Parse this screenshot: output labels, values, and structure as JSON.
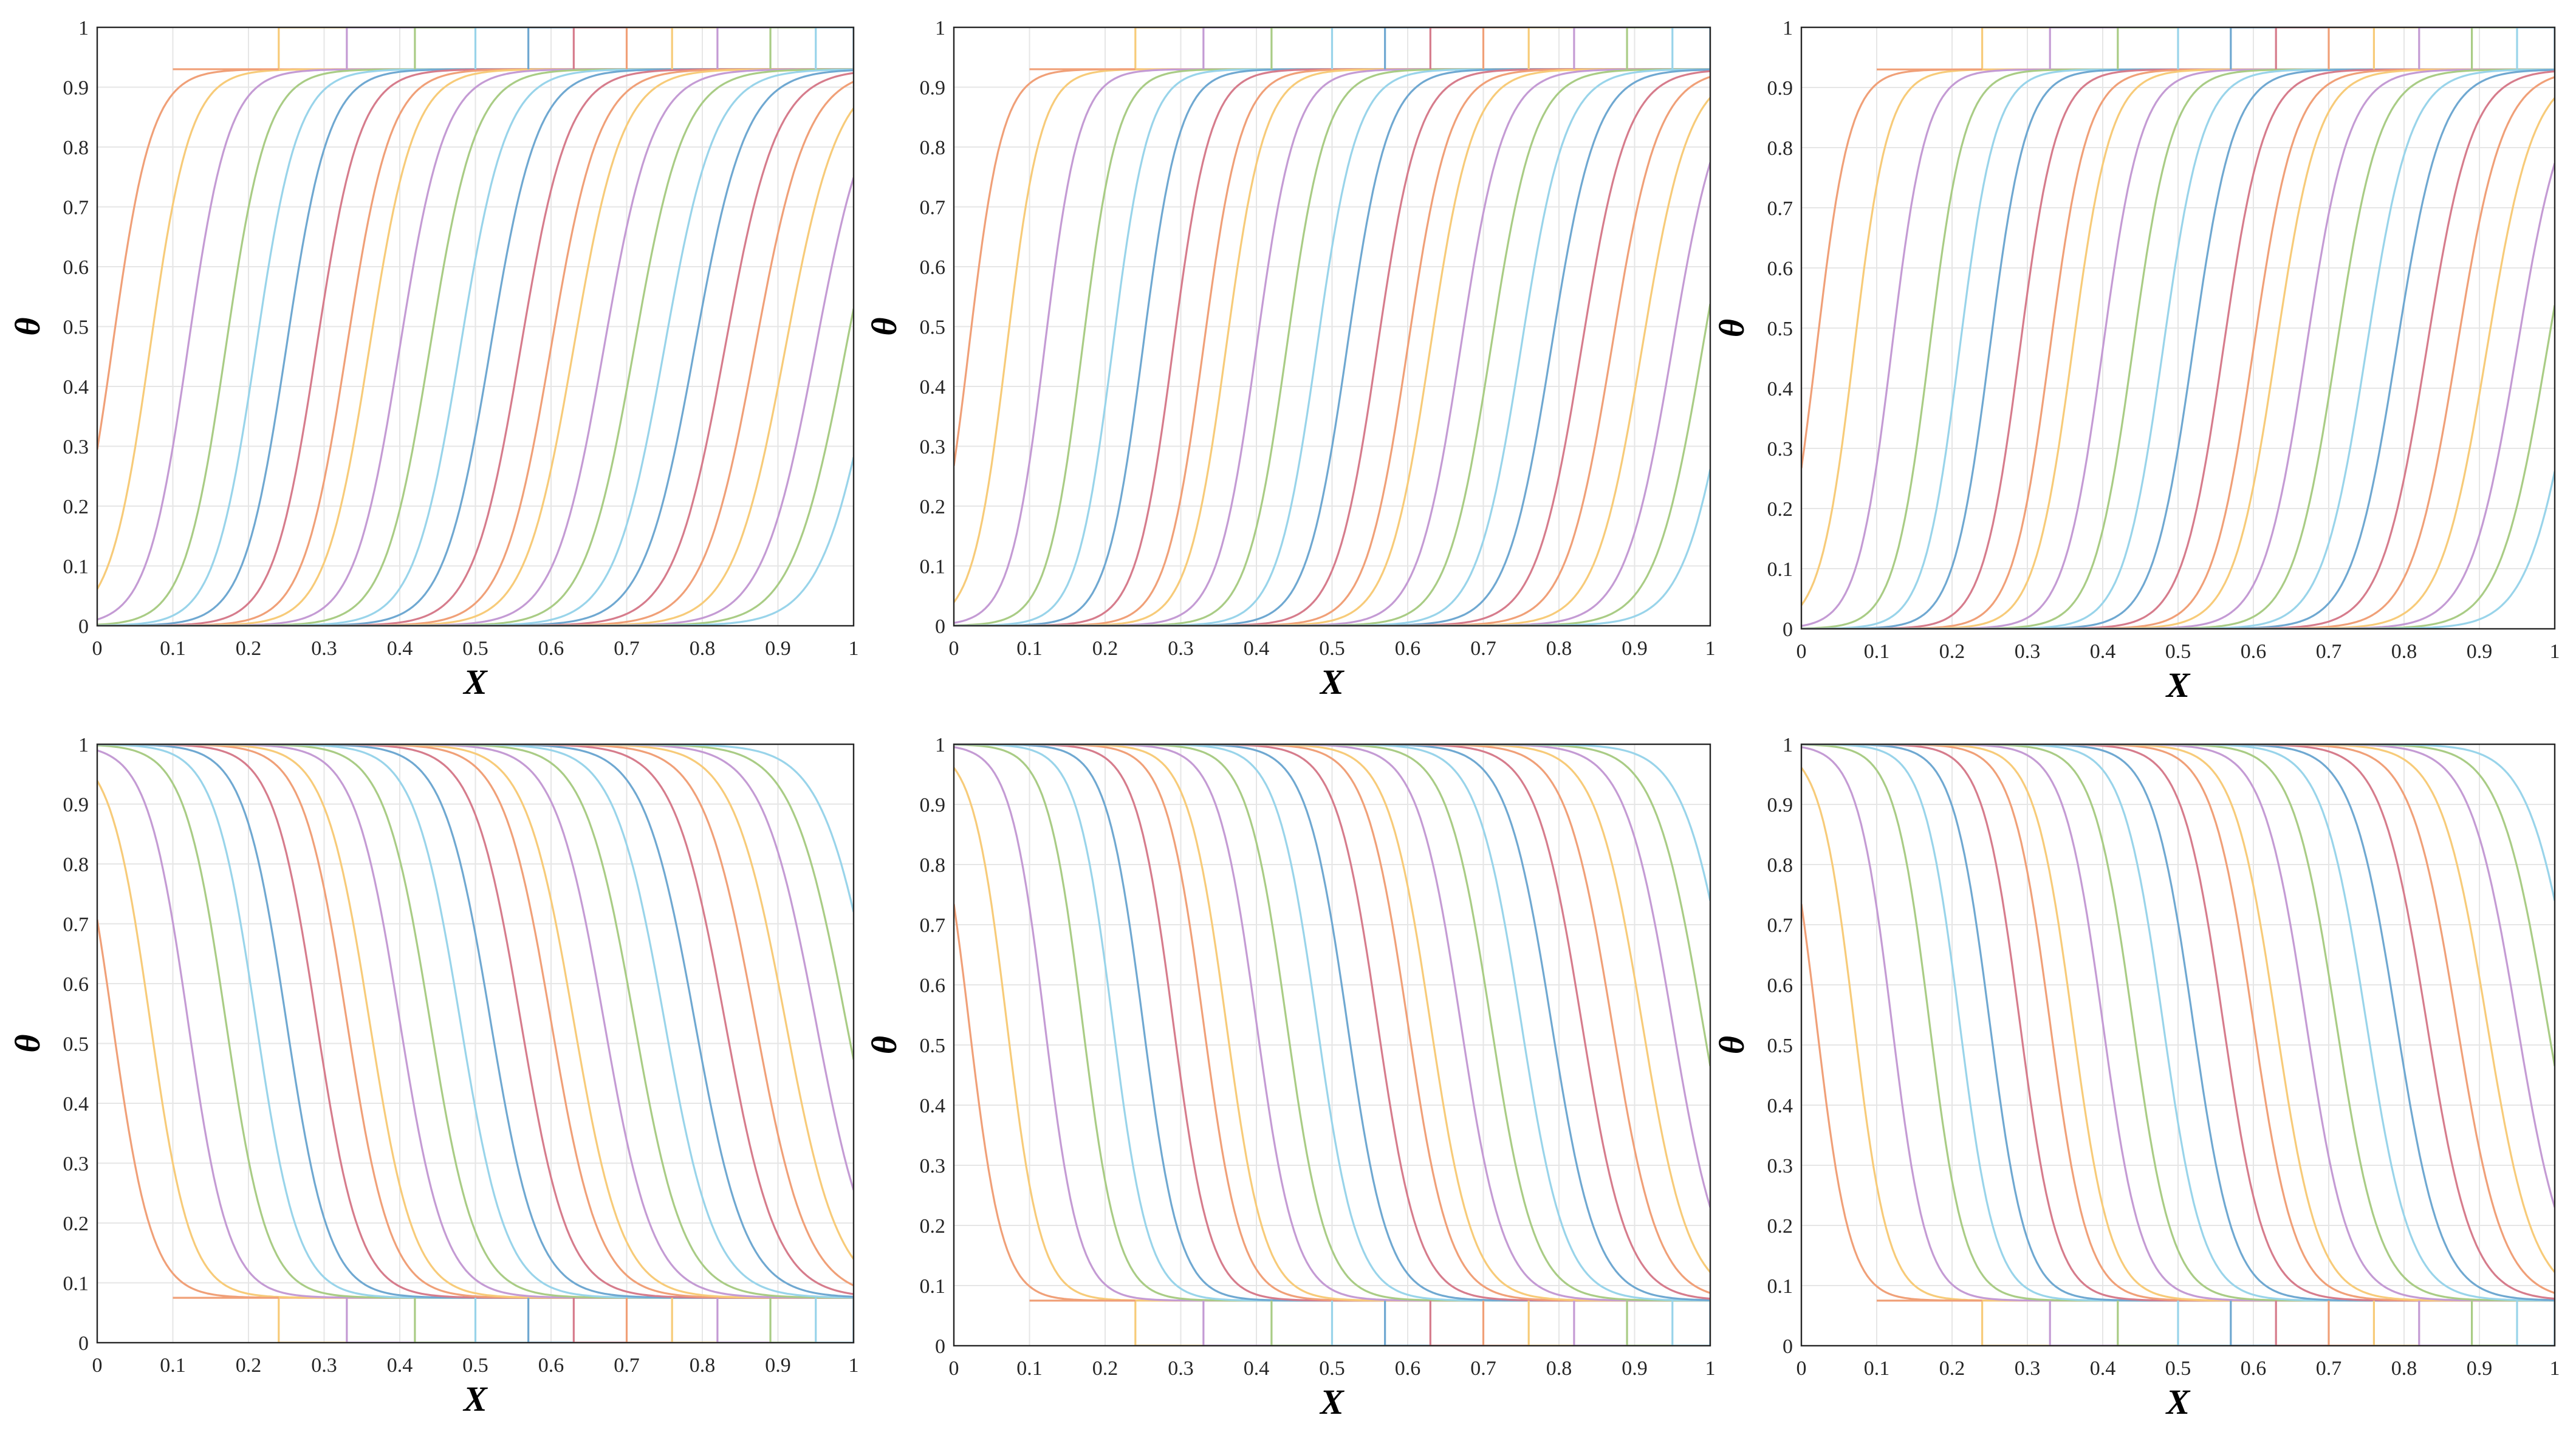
{
  "palette": [
    "#f0a078",
    "#f7cb79",
    "#c49bd4",
    "#a9cc85",
    "#99d4ea",
    "#6fa8d1",
    "#d67c8c"
  ],
  "chart_data": [
    {
      "type": "line",
      "panel": "top-left",
      "direction": "rising",
      "steepness": "standard",
      "xlabel": "X",
      "ylabel": "θ",
      "xlim": [
        0,
        1
      ],
      "ylim": [
        0,
        1
      ],
      "plateau": 0.93,
      "xticks": [
        0,
        0.1,
        0.2,
        0.3,
        0.4,
        0.5,
        0.6,
        0.7,
        0.8,
        0.9,
        1
      ],
      "yticks": [
        0,
        0.1,
        0.2,
        0.3,
        0.4,
        0.5,
        0.6,
        0.7,
        0.8,
        0.9,
        1
      ],
      "xtick_labels": [
        "0",
        "0.1",
        "0.2",
        "0.3",
        "0.4",
        "0.5",
        "0.6",
        "0.7",
        "0.8",
        "0.9",
        "1"
      ],
      "ytick_labels": [
        "0",
        "0.1",
        "0.2",
        "0.3",
        "0.4",
        "0.5",
        "0.6",
        "0.7",
        "0.8",
        "0.9",
        "1"
      ],
      "front_midpoints": [
        0.02,
        0.07,
        0.12,
        0.17,
        0.21,
        0.25,
        0.29,
        0.33,
        0.36,
        0.4,
        0.44,
        0.48,
        0.52,
        0.56,
        0.6,
        0.63,
        0.67,
        0.71,
        0.75,
        0.79,
        0.83,
        0.87,
        0.91,
        0.95,
        0.99,
        1.03
      ],
      "step_x": [
        0.24,
        0.33,
        0.42,
        0.5,
        0.57,
        0.63,
        0.7,
        0.76,
        0.82,
        0.89,
        0.95,
        1.0
      ]
    },
    {
      "type": "line",
      "panel": "top-middle",
      "direction": "rising",
      "steepness": "steep",
      "xlabel": "X",
      "ylabel": "θ",
      "xlim": [
        0,
        1
      ],
      "ylim": [
        0,
        1
      ],
      "plateau": 0.93,
      "xticks": [
        0,
        0.1,
        0.2,
        0.3,
        0.4,
        0.5,
        0.6,
        0.7,
        0.8,
        0.9,
        1
      ],
      "yticks": [
        0,
        0.1,
        0.2,
        0.3,
        0.4,
        0.5,
        0.6,
        0.7,
        0.8,
        0.9,
        1
      ],
      "xtick_labels": [
        "0",
        "0.1",
        "0.2",
        "0.3",
        "0.4",
        "0.5",
        "0.6",
        "0.7",
        "0.8",
        "0.9",
        "1"
      ],
      "ytick_labels": [
        "0",
        "0.1",
        "0.2",
        "0.3",
        "0.4",
        "0.5",
        "0.6",
        "0.7",
        "0.8",
        "0.9",
        "1"
      ],
      "front_midpoints": [
        0.02,
        0.07,
        0.12,
        0.17,
        0.21,
        0.25,
        0.29,
        0.33,
        0.36,
        0.4,
        0.44,
        0.48,
        0.52,
        0.56,
        0.6,
        0.63,
        0.67,
        0.71,
        0.75,
        0.79,
        0.83,
        0.87,
        0.91,
        0.95,
        0.99,
        1.03
      ],
      "step_x": [
        0.24,
        0.33,
        0.42,
        0.5,
        0.57,
        0.63,
        0.7,
        0.76,
        0.82,
        0.89,
        0.95,
        1.0
      ]
    },
    {
      "type": "line",
      "panel": "top-right",
      "direction": "rising",
      "steepness": "steep",
      "xlabel": "X",
      "ylabel": "θ",
      "xlim": [
        0,
        1
      ],
      "ylim": [
        0,
        1
      ],
      "plateau": 0.93,
      "xticks": [
        0,
        0.1,
        0.2,
        0.3,
        0.4,
        0.5,
        0.6,
        0.7,
        0.8,
        0.9,
        1
      ],
      "yticks": [
        0,
        0.1,
        0.2,
        0.3,
        0.4,
        0.5,
        0.6,
        0.7,
        0.8,
        0.9,
        1
      ],
      "xtick_labels": [
        "0",
        "0.1",
        "0.2",
        "0.3",
        "0.4",
        "0.5",
        "0.6",
        "0.7",
        "0.8",
        "0.9",
        "1"
      ],
      "ytick_labels": [
        "0",
        "0.1",
        "0.2",
        "0.3",
        "0.4",
        "0.5",
        "0.6",
        "0.7",
        "0.8",
        "0.9",
        "1"
      ],
      "front_midpoints": [
        0.02,
        0.07,
        0.12,
        0.17,
        0.21,
        0.25,
        0.29,
        0.33,
        0.36,
        0.4,
        0.44,
        0.48,
        0.52,
        0.56,
        0.6,
        0.63,
        0.67,
        0.71,
        0.75,
        0.79,
        0.83,
        0.87,
        0.91,
        0.95,
        0.99,
        1.03
      ],
      "step_x": [
        0.24,
        0.33,
        0.42,
        0.5,
        0.57,
        0.63,
        0.7,
        0.76,
        0.82,
        0.89,
        0.95,
        1.0
      ]
    },
    {
      "type": "line",
      "panel": "bottom-left",
      "direction": "falling",
      "steepness": "standard",
      "xlabel": "X",
      "ylabel": "θ",
      "xlim": [
        0,
        1
      ],
      "ylim": [
        0,
        1
      ],
      "plateau": 0.075,
      "xticks": [
        0,
        0.1,
        0.2,
        0.3,
        0.4,
        0.5,
        0.6,
        0.7,
        0.8,
        0.9,
        1
      ],
      "yticks": [
        0,
        0.1,
        0.2,
        0.3,
        0.4,
        0.5,
        0.6,
        0.7,
        0.8,
        0.9,
        1
      ],
      "xtick_labels": [
        "0",
        "0.1",
        "0.2",
        "0.3",
        "0.4",
        "0.5",
        "0.6",
        "0.7",
        "0.8",
        "0.9",
        "1"
      ],
      "ytick_labels": [
        "0",
        "0.1",
        "0.2",
        "0.3",
        "0.4",
        "0.5",
        "0.6",
        "0.7",
        "0.8",
        "0.9",
        "1"
      ],
      "front_midpoints": [
        0.02,
        0.07,
        0.12,
        0.17,
        0.21,
        0.25,
        0.29,
        0.33,
        0.36,
        0.4,
        0.44,
        0.48,
        0.52,
        0.56,
        0.6,
        0.63,
        0.67,
        0.71,
        0.75,
        0.79,
        0.83,
        0.87,
        0.91,
        0.95,
        0.99,
        1.03
      ],
      "step_x": [
        0.24,
        0.33,
        0.42,
        0.5,
        0.57,
        0.63,
        0.7,
        0.76,
        0.82,
        0.89,
        0.95,
        1.0
      ]
    },
    {
      "type": "line",
      "panel": "bottom-middle",
      "direction": "falling",
      "steepness": "steep",
      "xlabel": "X",
      "ylabel": "θ",
      "xlim": [
        0,
        1
      ],
      "ylim": [
        0,
        1
      ],
      "plateau": 0.075,
      "xticks": [
        0,
        0.1,
        0.2,
        0.3,
        0.4,
        0.5,
        0.6,
        0.7,
        0.8,
        0.9,
        1
      ],
      "yticks": [
        0,
        0.1,
        0.2,
        0.3,
        0.4,
        0.5,
        0.6,
        0.7,
        0.8,
        0.9,
        1
      ],
      "xtick_labels": [
        "0",
        "0.1",
        "0.2",
        "0.3",
        "0.4",
        "0.5",
        "0.6",
        "0.7",
        "0.8",
        "0.9",
        "1"
      ],
      "ytick_labels": [
        "0",
        "0.1",
        "0.2",
        "0.3",
        "0.4",
        "0.5",
        "0.6",
        "0.7",
        "0.8",
        "0.9",
        "1"
      ],
      "front_midpoints": [
        0.02,
        0.07,
        0.12,
        0.17,
        0.21,
        0.25,
        0.29,
        0.33,
        0.36,
        0.4,
        0.44,
        0.48,
        0.52,
        0.56,
        0.6,
        0.63,
        0.67,
        0.71,
        0.75,
        0.79,
        0.83,
        0.87,
        0.91,
        0.95,
        0.99,
        1.03
      ],
      "step_x": [
        0.24,
        0.33,
        0.42,
        0.5,
        0.57,
        0.63,
        0.7,
        0.76,
        0.82,
        0.89,
        0.95,
        1.0
      ]
    },
    {
      "type": "line",
      "panel": "bottom-right",
      "direction": "falling",
      "steepness": "steep",
      "xlabel": "X",
      "ylabel": "θ",
      "xlim": [
        0,
        1
      ],
      "ylim": [
        0,
        1
      ],
      "plateau": 0.075,
      "xticks": [
        0,
        0.1,
        0.2,
        0.3,
        0.4,
        0.5,
        0.6,
        0.7,
        0.8,
        0.9,
        1
      ],
      "yticks": [
        0,
        0.1,
        0.2,
        0.3,
        0.4,
        0.5,
        0.6,
        0.7,
        0.8,
        0.9,
        1
      ],
      "xtick_labels": [
        "0",
        "0.1",
        "0.2",
        "0.3",
        "0.4",
        "0.5",
        "0.6",
        "0.7",
        "0.8",
        "0.9",
        "1"
      ],
      "ytick_labels": [
        "0",
        "0.1",
        "0.2",
        "0.3",
        "0.4",
        "0.5",
        "0.6",
        "0.7",
        "0.8",
        "0.9",
        "1"
      ],
      "front_midpoints": [
        0.02,
        0.07,
        0.12,
        0.17,
        0.21,
        0.25,
        0.29,
        0.33,
        0.36,
        0.4,
        0.44,
        0.48,
        0.52,
        0.56,
        0.6,
        0.63,
        0.67,
        0.71,
        0.75,
        0.79,
        0.83,
        0.87,
        0.91,
        0.95,
        0.99,
        1.03
      ],
      "step_x": [
        0.24,
        0.33,
        0.42,
        0.5,
        0.57,
        0.63,
        0.7,
        0.76,
        0.82,
        0.89,
        0.95,
        1.0
      ]
    }
  ]
}
